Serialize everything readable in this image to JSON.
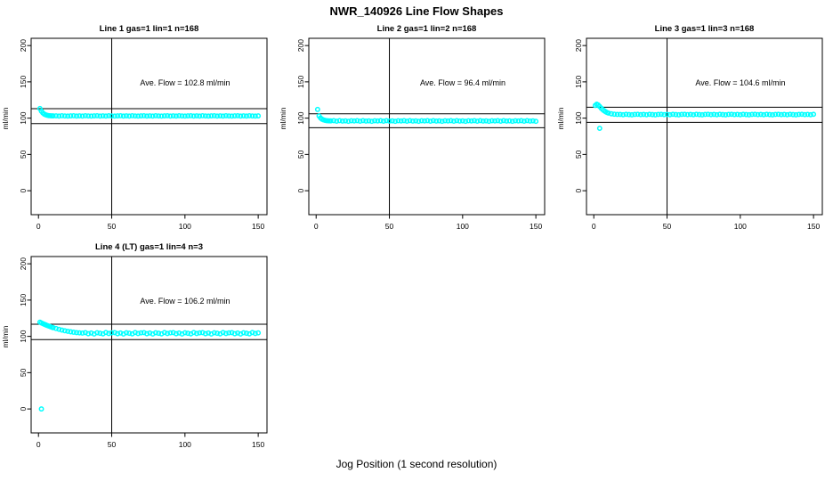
{
  "title": "NWR_140926  Line Flow Shapes",
  "xlabel": "Jog Position (1 second resolution)",
  "ylabel": "ml/min",
  "marker": "open-circle",
  "marker_color": "#00FFFF",
  "line_color": "#000000",
  "chart_data": [
    {
      "type": "scatter",
      "title": "Line 1 gas=1 lin=1 n=168",
      "annotation": "Ave. Flow =  102.8  ml/min",
      "ave_flow_ml_min": 102.8,
      "n": 168,
      "xticks": [
        0,
        50,
        100,
        150
      ],
      "yticks": [
        0,
        50,
        100,
        150,
        200
      ],
      "xlim": [
        -5,
        156
      ],
      "ylim": [
        -33,
        210
      ],
      "ref_lines": {
        "vline_x": 50,
        "upper": 113.1,
        "lower": 92.5
      },
      "points": [
        [
          1,
          113.2
        ],
        [
          2,
          109.6
        ],
        [
          3,
          107.1
        ],
        [
          4,
          105.5
        ],
        [
          5,
          104.5
        ],
        [
          6,
          103.9
        ],
        [
          7,
          103.5
        ],
        [
          8,
          103.3
        ],
        [
          9,
          103.2
        ],
        [
          10,
          103.1
        ],
        [
          12,
          103.2
        ],
        [
          14,
          102.9
        ],
        [
          16,
          103.3
        ],
        [
          18,
          103
        ],
        [
          20,
          102.8
        ],
        [
          22,
          103.1
        ],
        [
          24,
          103.3
        ],
        [
          26,
          102.9
        ],
        [
          28,
          103.2
        ],
        [
          30,
          102.9
        ],
        [
          32,
          103.3
        ],
        [
          34,
          103
        ],
        [
          36,
          102.8
        ],
        [
          38,
          103.1
        ],
        [
          40,
          103.3
        ],
        [
          42,
          102.9
        ],
        [
          44,
          103.2
        ],
        [
          46,
          102.9
        ],
        [
          48,
          103.3
        ],
        [
          50,
          103
        ],
        [
          52,
          102.8
        ],
        [
          54,
          103.1
        ],
        [
          56,
          103.3
        ],
        [
          58,
          102.9
        ],
        [
          60,
          103.2
        ],
        [
          62,
          102.9
        ],
        [
          64,
          103.3
        ],
        [
          66,
          103
        ],
        [
          68,
          102.8
        ],
        [
          70,
          103.1
        ],
        [
          72,
          103.3
        ],
        [
          74,
          102.9
        ],
        [
          76,
          103.2
        ],
        [
          78,
          102.9
        ],
        [
          80,
          103.3
        ],
        [
          82,
          103
        ],
        [
          84,
          102.8
        ],
        [
          86,
          103.1
        ],
        [
          88,
          103.3
        ],
        [
          90,
          102.9
        ],
        [
          92,
          103.2
        ],
        [
          94,
          102.9
        ],
        [
          96,
          103.3
        ],
        [
          98,
          103
        ],
        [
          100,
          102.8
        ],
        [
          102,
          103.1
        ],
        [
          104,
          103.3
        ],
        [
          106,
          102.9
        ],
        [
          108,
          103.2
        ],
        [
          110,
          102.9
        ],
        [
          112,
          103.3
        ],
        [
          114,
          103
        ],
        [
          116,
          102.8
        ],
        [
          118,
          103.1
        ],
        [
          120,
          103.3
        ],
        [
          122,
          102.9
        ],
        [
          124,
          103.2
        ],
        [
          126,
          102.9
        ],
        [
          128,
          103.3
        ],
        [
          130,
          103
        ],
        [
          132,
          102.8
        ],
        [
          134,
          103.1
        ],
        [
          136,
          103.3
        ],
        [
          138,
          102.9
        ],
        [
          140,
          103.2
        ],
        [
          142,
          102.9
        ],
        [
          144,
          103.3
        ],
        [
          146,
          103
        ],
        [
          148,
          102.8
        ],
        [
          150,
          103.1
        ]
      ]
    },
    {
      "type": "scatter",
      "title": "Line 2 gas=1 lin=2 n=168",
      "annotation": "Ave. Flow =  96.4  ml/min",
      "ave_flow_ml_min": 96.4,
      "n": 168,
      "xticks": [
        0,
        50,
        100,
        150
      ],
      "yticks": [
        0,
        50,
        100,
        150,
        200
      ],
      "xlim": [
        -5,
        156
      ],
      "ylim": [
        -33,
        210
      ],
      "ref_lines": {
        "vline_x": 50,
        "upper": 106.0,
        "lower": 86.8
      },
      "points": [
        [
          1,
          112
        ],
        [
          2,
          103
        ],
        [
          3,
          100.2
        ],
        [
          4,
          98.6
        ],
        [
          5,
          97.6
        ],
        [
          6,
          97
        ],
        [
          7,
          96.6
        ],
        [
          8,
          96.4
        ],
        [
          9,
          96.3
        ],
        [
          10,
          96.2
        ],
        [
          12,
          96.5
        ],
        [
          14,
          95.8
        ],
        [
          16,
          96.6
        ],
        [
          18,
          96
        ],
        [
          20,
          96.3
        ],
        [
          22,
          95.6
        ],
        [
          24,
          96.4
        ],
        [
          26,
          96.1
        ],
        [
          28,
          96.5
        ],
        [
          30,
          95.8
        ],
        [
          32,
          96.6
        ],
        [
          34,
          96
        ],
        [
          36,
          96.3
        ],
        [
          38,
          95.6
        ],
        [
          40,
          96.4
        ],
        [
          42,
          96.1
        ],
        [
          44,
          96.5
        ],
        [
          46,
          95.8
        ],
        [
          48,
          96.6
        ],
        [
          50,
          96
        ],
        [
          52,
          96.3
        ],
        [
          54,
          95.6
        ],
        [
          56,
          96.4
        ],
        [
          58,
          96.1
        ],
        [
          60,
          96.5
        ],
        [
          62,
          95.8
        ],
        [
          64,
          96.6
        ],
        [
          66,
          96
        ],
        [
          68,
          96.3
        ],
        [
          70,
          95.6
        ],
        [
          72,
          96.4
        ],
        [
          74,
          96.1
        ],
        [
          76,
          96.5
        ],
        [
          78,
          95.8
        ],
        [
          80,
          96.6
        ],
        [
          82,
          96
        ],
        [
          84,
          96.3
        ],
        [
          86,
          95.6
        ],
        [
          88,
          96.4
        ],
        [
          90,
          96.1
        ],
        [
          92,
          96.5
        ],
        [
          94,
          95.8
        ],
        [
          96,
          96.6
        ],
        [
          98,
          96
        ],
        [
          100,
          96.3
        ],
        [
          102,
          95.6
        ],
        [
          104,
          96.4
        ],
        [
          106,
          96.1
        ],
        [
          108,
          96.5
        ],
        [
          110,
          95.8
        ],
        [
          112,
          96.6
        ],
        [
          114,
          96
        ],
        [
          116,
          96.3
        ],
        [
          118,
          95.6
        ],
        [
          120,
          96.4
        ],
        [
          122,
          96.1
        ],
        [
          124,
          96.5
        ],
        [
          126,
          95.8
        ],
        [
          128,
          96.6
        ],
        [
          130,
          96
        ],
        [
          132,
          96.3
        ],
        [
          134,
          95.6
        ],
        [
          136,
          96.4
        ],
        [
          138,
          96.1
        ],
        [
          140,
          96.5
        ],
        [
          142,
          95.8
        ],
        [
          144,
          96.6
        ],
        [
          146,
          96
        ],
        [
          148,
          96.3
        ],
        [
          150,
          95.6
        ]
      ]
    },
    {
      "type": "scatter",
      "title": "Line 3 gas=1 lin=3 n=168",
      "annotation": "Ave. Flow =  104.6  ml/min",
      "ave_flow_ml_min": 104.6,
      "n": 168,
      "xticks": [
        0,
        50,
        100,
        150
      ],
      "yticks": [
        0,
        50,
        100,
        150,
        200
      ],
      "xlim": [
        -5,
        156
      ],
      "ylim": [
        -33,
        210
      ],
      "ref_lines": {
        "vline_x": 50,
        "upper": 115.1,
        "lower": 94.1
      },
      "points": [
        [
          1,
          117.5
        ],
        [
          2,
          119.3
        ],
        [
          3,
          118.2
        ],
        [
          4,
          116
        ],
        [
          4,
          86
        ],
        [
          5,
          113.8
        ],
        [
          6,
          111.9
        ],
        [
          7,
          110.3
        ],
        [
          8,
          108.9
        ],
        [
          9,
          107.8
        ],
        [
          10,
          107
        ],
        [
          12,
          106
        ],
        [
          14,
          105.4
        ],
        [
          16,
          105.1
        ],
        [
          18,
          105.2
        ],
        [
          20,
          104.7
        ],
        [
          22,
          105.3
        ],
        [
          24,
          104.9
        ],
        [
          26,
          104.6
        ],
        [
          28,
          105.1
        ],
        [
          30,
          105.3
        ],
        [
          32,
          104.8
        ],
        [
          34,
          105.2
        ],
        [
          36,
          104.7
        ],
        [
          38,
          105.3
        ],
        [
          40,
          104.9
        ],
        [
          42,
          104.6
        ],
        [
          44,
          105.1
        ],
        [
          46,
          105.3
        ],
        [
          48,
          104.8
        ],
        [
          50,
          105.2
        ],
        [
          52,
          104.7
        ],
        [
          54,
          105.3
        ],
        [
          56,
          104.9
        ],
        [
          58,
          104.6
        ],
        [
          60,
          105.1
        ],
        [
          62,
          105.3
        ],
        [
          64,
          104.8
        ],
        [
          66,
          105.2
        ],
        [
          68,
          104.7
        ],
        [
          70,
          105.3
        ],
        [
          72,
          104.9
        ],
        [
          74,
          104.6
        ],
        [
          76,
          105.1
        ],
        [
          78,
          105.3
        ],
        [
          80,
          104.8
        ],
        [
          82,
          105.2
        ],
        [
          84,
          104.7
        ],
        [
          86,
          105.3
        ],
        [
          88,
          104.9
        ],
        [
          90,
          104.6
        ],
        [
          92,
          105.1
        ],
        [
          94,
          105.3
        ],
        [
          96,
          104.8
        ],
        [
          98,
          105.2
        ],
        [
          100,
          104.7
        ],
        [
          102,
          105.3
        ],
        [
          104,
          104.9
        ],
        [
          106,
          104.6
        ],
        [
          108,
          105.1
        ],
        [
          110,
          105.3
        ],
        [
          112,
          104.8
        ],
        [
          114,
          105.2
        ],
        [
          116,
          104.7
        ],
        [
          118,
          105.3
        ],
        [
          120,
          104.9
        ],
        [
          122,
          104.6
        ],
        [
          124,
          105.1
        ],
        [
          126,
          105.3
        ],
        [
          128,
          104.8
        ],
        [
          130,
          105.2
        ],
        [
          132,
          104.7
        ],
        [
          134,
          105.3
        ],
        [
          136,
          104.9
        ],
        [
          138,
          104.6
        ],
        [
          140,
          105.1
        ],
        [
          142,
          105.3
        ],
        [
          144,
          104.8
        ],
        [
          146,
          105.2
        ],
        [
          148,
          104.7
        ],
        [
          150,
          105.3
        ]
      ]
    },
    {
      "type": "scatter",
      "title": "Line 4 (LT) gas=1 lin=4 n=3",
      "annotation": "Ave. Flow =  106.2  ml/min",
      "ave_flow_ml_min": 106.2,
      "n": 3,
      "xticks": [
        0,
        50,
        100,
        150
      ],
      "yticks": [
        0,
        50,
        100,
        150,
        200
      ],
      "xlim": [
        -5,
        156
      ],
      "ylim": [
        -33,
        210
      ],
      "ref_lines": {
        "vline_x": 50,
        "upper": 116.8,
        "lower": 95.6
      },
      "points": [
        [
          2,
          0
        ],
        [
          1,
          119.6
        ],
        [
          2,
          118.5
        ],
        [
          3,
          117.6
        ],
        [
          4,
          116.7
        ],
        [
          5,
          115.8
        ],
        [
          6,
          115
        ],
        [
          7,
          114.2
        ],
        [
          8,
          113.4
        ],
        [
          9,
          112.7
        ],
        [
          10,
          112
        ],
        [
          12,
          110.8
        ],
        [
          14,
          109.7
        ],
        [
          16,
          108.7
        ],
        [
          18,
          107.8
        ],
        [
          20,
          107
        ],
        [
          22,
          106.3
        ],
        [
          24,
          105.7
        ],
        [
          26,
          105.2
        ],
        [
          28,
          104.8
        ],
        [
          30,
          104.5
        ],
        [
          32,
          105.2
        ],
        [
          34,
          103.7
        ],
        [
          36,
          104.7
        ],
        [
          38,
          103.3
        ],
        [
          40,
          105
        ],
        [
          42,
          104.3
        ],
        [
          44,
          103.5
        ],
        [
          46,
          105.3
        ],
        [
          48,
          104
        ],
        [
          50,
          104.8
        ],
        [
          52,
          105.2
        ],
        [
          54,
          103.7
        ],
        [
          56,
          104.7
        ],
        [
          58,
          103.3
        ],
        [
          60,
          105
        ],
        [
          62,
          104.3
        ],
        [
          64,
          103.5
        ],
        [
          66,
          105.3
        ],
        [
          68,
          104
        ],
        [
          70,
          104.8
        ],
        [
          72,
          105.2
        ],
        [
          74,
          103.7
        ],
        [
          76,
          104.7
        ],
        [
          78,
          103.3
        ],
        [
          80,
          105
        ],
        [
          82,
          104.3
        ],
        [
          84,
          103.5
        ],
        [
          86,
          105.3
        ],
        [
          88,
          104
        ],
        [
          90,
          104.8
        ],
        [
          92,
          105.2
        ],
        [
          94,
          103.7
        ],
        [
          96,
          104.7
        ],
        [
          98,
          103.3
        ],
        [
          100,
          105
        ],
        [
          102,
          104.3
        ],
        [
          104,
          103.5
        ],
        [
          106,
          105.3
        ],
        [
          108,
          104
        ],
        [
          110,
          104.8
        ],
        [
          112,
          105.2
        ],
        [
          114,
          103.7
        ],
        [
          116,
          104.7
        ],
        [
          118,
          103.3
        ],
        [
          120,
          105
        ],
        [
          122,
          104.3
        ],
        [
          124,
          103.5
        ],
        [
          126,
          105.3
        ],
        [
          128,
          104
        ],
        [
          130,
          104.8
        ],
        [
          132,
          105.2
        ],
        [
          134,
          103.7
        ],
        [
          136,
          104.7
        ],
        [
          138,
          103.3
        ],
        [
          140,
          105
        ],
        [
          142,
          104.3
        ],
        [
          144,
          103.5
        ],
        [
          146,
          105.3
        ],
        [
          148,
          104
        ],
        [
          150,
          104.8
        ]
      ]
    }
  ]
}
